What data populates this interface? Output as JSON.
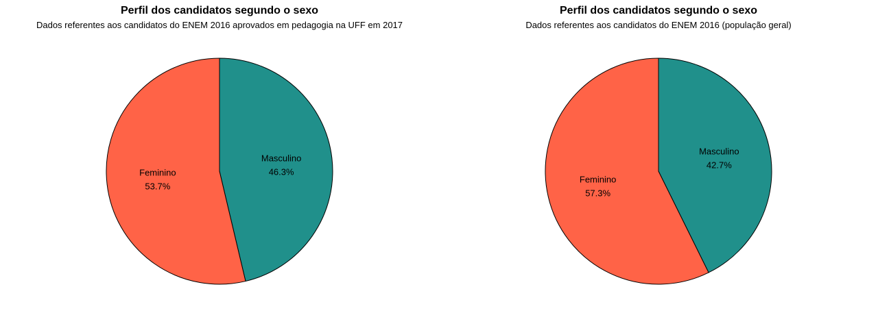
{
  "colors": {
    "feminino": "#FF6347",
    "masculino": "#20908B",
    "outline": "#000000"
  },
  "chart_data": [
    {
      "type": "pie",
      "title": "Perfil dos candidatos segundo o sexo",
      "subtitle": "Dados referentes aos candidatos do ENEM 2016 aprovados em pedagogia na UFF em 2017",
      "slices": [
        {
          "label": "Masculino",
          "value": 46.3,
          "value_label": "46.3%",
          "color": "#20908B"
        },
        {
          "label": "Feminino",
          "value": 53.7,
          "value_label": "53.7%",
          "color": "#FF6347"
        }
      ]
    },
    {
      "type": "pie",
      "title": "Perfil dos candidatos segundo o sexo",
      "subtitle": "Dados referentes aos candidatos do ENEM 2016 (população geral)",
      "slices": [
        {
          "label": "Masculino",
          "value": 42.7,
          "value_label": "42.7%",
          "color": "#20908B"
        },
        {
          "label": "Feminino",
          "value": 57.3,
          "value_label": "57.3%",
          "color": "#FF6347"
        }
      ]
    }
  ]
}
